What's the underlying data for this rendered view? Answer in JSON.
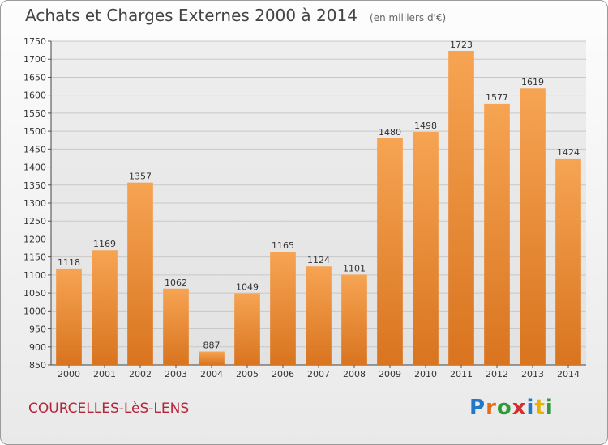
{
  "header": {
    "title": "Achats et Charges Externes 2000 à 2014",
    "subtitle": "(en milliers d'€)"
  },
  "footer": {
    "city": "COURCELLES-LèS-LENS",
    "brand": [
      "P",
      "r",
      "o",
      "x",
      "i",
      "t",
      "i"
    ],
    "brand_colors": [
      "#1f78c8",
      "#e66b1a",
      "#2e9b3a",
      "#d52c2c",
      "#1f78c8",
      "#e8b100",
      "#2e9b3a"
    ]
  },
  "chart_data": {
    "type": "bar",
    "title": "Achats et Charges Externes 2000 à 2014",
    "xlabel": "",
    "ylabel": "",
    "categories": [
      "2000",
      "2001",
      "2002",
      "2003",
      "2004",
      "2005",
      "2006",
      "2007",
      "2008",
      "2009",
      "2010",
      "2011",
      "2012",
      "2013",
      "2014"
    ],
    "values": [
      1118,
      1169,
      1357,
      1062,
      887,
      1049,
      1165,
      1124,
      1101,
      1480,
      1498,
      1723,
      1577,
      1619,
      1424
    ],
    "ylim": [
      850,
      1750
    ],
    "yticks": [
      850,
      900,
      950,
      1000,
      1050,
      1100,
      1150,
      1200,
      1250,
      1300,
      1350,
      1400,
      1450,
      1500,
      1550,
      1600,
      1650,
      1700,
      1750
    ],
    "grid": true,
    "bar_color_top": "#f6a453",
    "bar_color_bottom": "#d9741f"
  }
}
